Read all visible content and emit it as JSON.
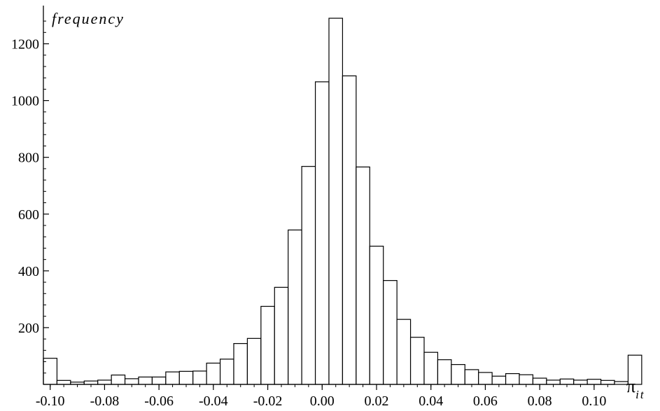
{
  "chart_data": {
    "type": "bar",
    "title": "",
    "ylabel": "frequency",
    "xlabel_symbol": "π",
    "xlabel_subscript": "it",
    "ylim": [
      0,
      1300
    ],
    "yticks": [
      200,
      400,
      600,
      800,
      1000,
      1200
    ],
    "ytick_labels": [
      "200",
      "400",
      "600",
      "800",
      "1000",
      "1200"
    ],
    "xlim": [
      -0.1025,
      0.1075
    ],
    "xticks": [
      -0.1,
      -0.08,
      -0.06,
      -0.04,
      -0.02,
      0.0,
      0.02,
      0.04,
      0.06,
      0.08,
      0.1
    ],
    "xtick_labels": [
      "-0.10",
      "-0.08",
      "-0.06",
      "-0.04",
      "-0.02",
      "0.00",
      "0.02",
      "0.04",
      "0.06",
      "0.08",
      "0.10"
    ],
    "bin_width": 0.005,
    "bins": [
      {
        "x": -0.1,
        "value": 92
      },
      {
        "x": -0.095,
        "value": 14
      },
      {
        "x": -0.09,
        "value": 8
      },
      {
        "x": -0.085,
        "value": 12
      },
      {
        "x": -0.08,
        "value": 15
      },
      {
        "x": -0.075,
        "value": 33
      },
      {
        "x": -0.07,
        "value": 20
      },
      {
        "x": -0.065,
        "value": 26
      },
      {
        "x": -0.06,
        "value": 26
      },
      {
        "x": -0.055,
        "value": 44
      },
      {
        "x": -0.05,
        "value": 46
      },
      {
        "x": -0.045,
        "value": 47
      },
      {
        "x": -0.04,
        "value": 75
      },
      {
        "x": -0.035,
        "value": 89
      },
      {
        "x": -0.03,
        "value": 144
      },
      {
        "x": -0.025,
        "value": 162
      },
      {
        "x": -0.02,
        "value": 275
      },
      {
        "x": -0.015,
        "value": 342
      },
      {
        "x": -0.01,
        "value": 544
      },
      {
        "x": -0.005,
        "value": 768
      },
      {
        "x": 0.0,
        "value": 1066
      },
      {
        "x": 0.005,
        "value": 1290
      },
      {
        "x": 0.01,
        "value": 1087
      },
      {
        "x": 0.015,
        "value": 766
      },
      {
        "x": 0.02,
        "value": 487
      },
      {
        "x": 0.025,
        "value": 366
      },
      {
        "x": 0.03,
        "value": 229
      },
      {
        "x": 0.035,
        "value": 166
      },
      {
        "x": 0.04,
        "value": 113
      },
      {
        "x": 0.045,
        "value": 87
      },
      {
        "x": 0.05,
        "value": 70
      },
      {
        "x": 0.055,
        "value": 52
      },
      {
        "x": 0.06,
        "value": 42
      },
      {
        "x": 0.065,
        "value": 29
      },
      {
        "x": 0.07,
        "value": 38
      },
      {
        "x": 0.075,
        "value": 34
      },
      {
        "x": 0.08,
        "value": 22
      },
      {
        "x": 0.085,
        "value": 15
      },
      {
        "x": 0.09,
        "value": 19
      },
      {
        "x": 0.095,
        "value": 15
      },
      {
        "x": 0.1,
        "value": 18
      },
      {
        "x": 0.105,
        "value": 14
      },
      {
        "x": 0.11,
        "value": 10
      },
      {
        "x": 0.115,
        "value": 103
      }
    ],
    "bar_fill": "#ffffff",
    "bar_stroke": "#000000"
  }
}
